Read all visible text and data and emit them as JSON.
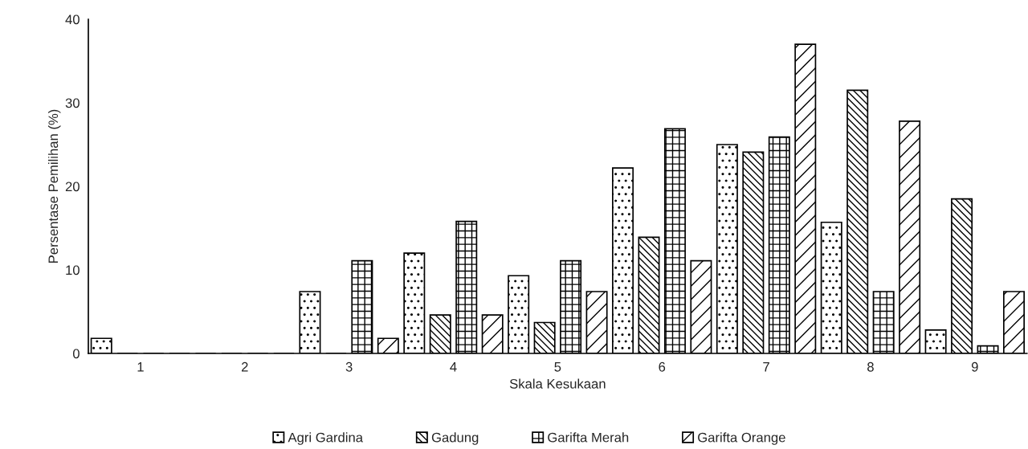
{
  "chart_data": {
    "type": "bar",
    "xlabel": "Skala Kesukaan",
    "ylabel": "Persentase Pemilihan (%)",
    "categories": [
      "1",
      "2",
      "3",
      "4",
      "5",
      "6",
      "7",
      "8",
      "9"
    ],
    "series": [
      {
        "name": "Agri Gardina",
        "color": "#000000",
        "values": [
          1.8,
          0,
          7.4,
          12.0,
          9.3,
          22.2,
          25.0,
          15.7,
          2.8
        ]
      },
      {
        "name": "Gadung",
        "color": "#000000",
        "values": [
          0,
          0,
          0,
          4.6,
          3.7,
          13.9,
          24.1,
          31.5,
          18.5
        ]
      },
      {
        "name": "Garifta Merah",
        "color": "#000000",
        "values": [
          0,
          0,
          11.1,
          15.8,
          11.1,
          26.9,
          25.9,
          7.4,
          0.9
        ]
      },
      {
        "name": "Garifta Orange",
        "color": "#000000",
        "values": [
          0,
          0,
          1.8,
          4.6,
          7.4,
          11.1,
          37.0,
          27.8,
          7.4
        ]
      }
    ],
    "ylim": [
      0,
      40
    ],
    "yticks": [
      0,
      10,
      20,
      30,
      40
    ],
    "grid": false,
    "legend": "bottom"
  }
}
